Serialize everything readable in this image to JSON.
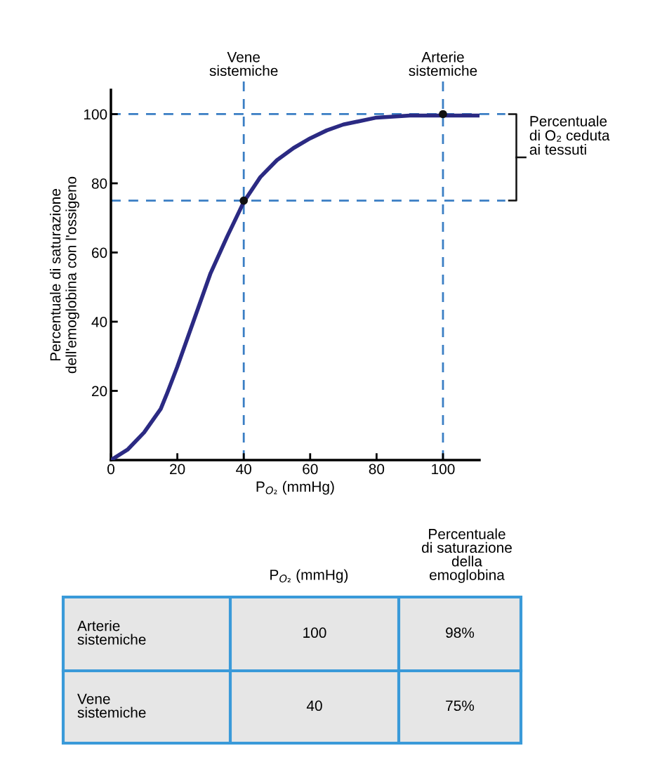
{
  "chart_data": {
    "type": "line",
    "xlabel": "P$_{O₂}$ (mmHg)",
    "ylabel": "Percentuale di saturazione\ndell'emoglobina con l'ossigeno",
    "xlim": [
      0,
      111
    ],
    "ylim": [
      0,
      107
    ],
    "xticks": [
      0,
      20,
      40,
      60,
      80,
      100
    ],
    "yticks": [
      20,
      40,
      60,
      80,
      100
    ],
    "grid": false,
    "series": [
      {
        "color": "#2b2a83",
        "marker": "none",
        "line_style": "solid",
        "x": [
          0,
          5,
          10,
          15,
          17,
          20,
          25,
          30,
          35,
          40,
          45,
          50,
          55,
          60,
          65,
          70,
          80,
          90,
          100,
          110.8
        ],
        "values": [
          0,
          3,
          8,
          14.8,
          19.5,
          27,
          40.5,
          54,
          64.6,
          74.6,
          81.8,
          86.7,
          90.2,
          93,
          95.3,
          97,
          99,
          99.6,
          99.6,
          99.6
        ]
      },
      {
        "type": "scatter",
        "color": "#111111",
        "marker": "circle",
        "x": [
          40,
          100
        ],
        "values": [
          75,
          100
        ]
      }
    ],
    "ref_lines": [
      {
        "axis": "x",
        "value": 40,
        "label": "Vene\nsistemiche",
        "color": "#3a7ec4",
        "line_style": "dashed"
      },
      {
        "axis": "x",
        "value": 100,
        "label": "Arterie\nsistemiche",
        "color": "#3a7ec4",
        "line_style": "dashed"
      },
      {
        "axis": "y",
        "value": 100,
        "label": null,
        "color": "#3a7ec4",
        "line_style": "dashed"
      },
      {
        "axis": "y",
        "value": 75,
        "label": null,
        "color": "#3a7ec4",
        "line_style": "dashed"
      }
    ],
    "annotations": [
      "Percentuale\ndi O₂ ceduta\nai tessuti",
      "P$_{O₂}$ (mmHg)",
      "Percentuale\ndi saturazione\ndella\nemoglobina",
      "Arterie\nsistemiche",
      "100",
      "98%",
      "Vene\nsistemiche",
      "40",
      "75%"
    ]
  }
}
